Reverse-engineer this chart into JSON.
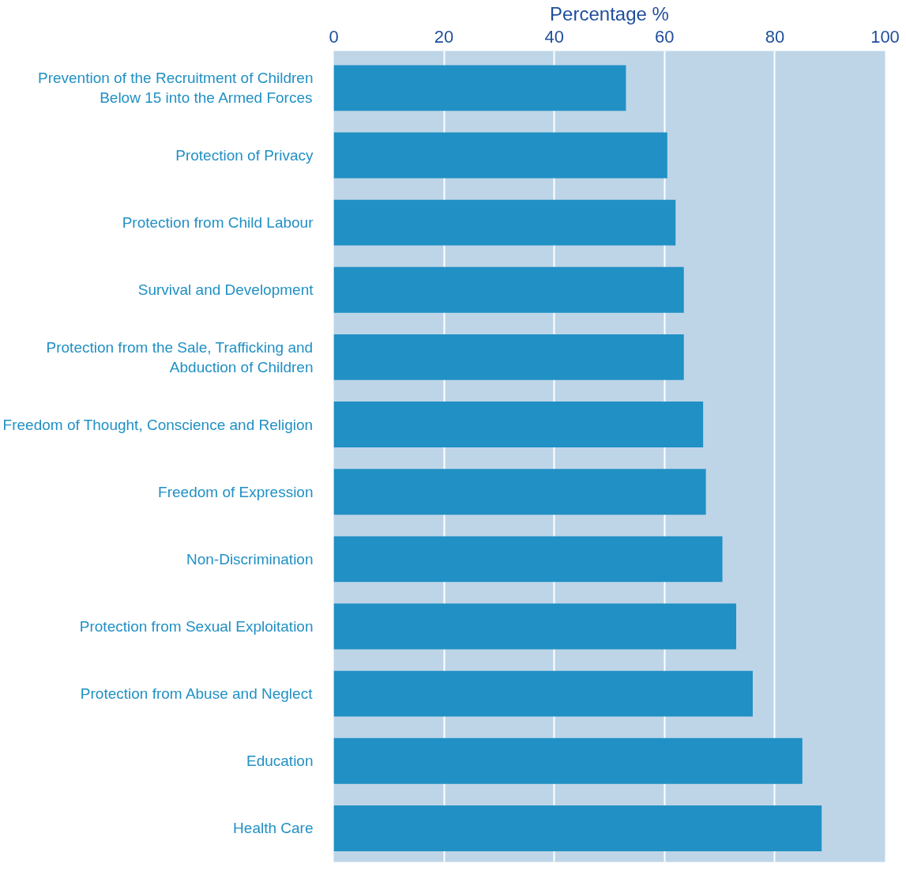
{
  "chart_data": {
    "type": "bar",
    "orientation": "horizontal",
    "xlabel": "Percentage %",
    "categories": [
      "Prevention of the Recruitment of Children Below 15 into the Armed Forces",
      "Protection of Privacy",
      "Protection from Child Labour",
      "Survival and Development",
      "Protection from the Sale, Trafficking and Abduction of Children",
      "Freedom of Thought, Conscience and Religion",
      "Freedom of Expression",
      "Non-Discrimination",
      "Protection from Sexual Exploitation",
      "Protection from Abuse and Neglect",
      "Education",
      "Health Care"
    ],
    "values": [
      53,
      60.5,
      62,
      63.5,
      63.5,
      67,
      67.5,
      70.5,
      73,
      76,
      85,
      88.5
    ],
    "color": "#2190c4",
    "xlim": [
      0,
      100
    ],
    "xticks": [
      0,
      20,
      40,
      60,
      80,
      100
    ],
    "grid": "x"
  }
}
